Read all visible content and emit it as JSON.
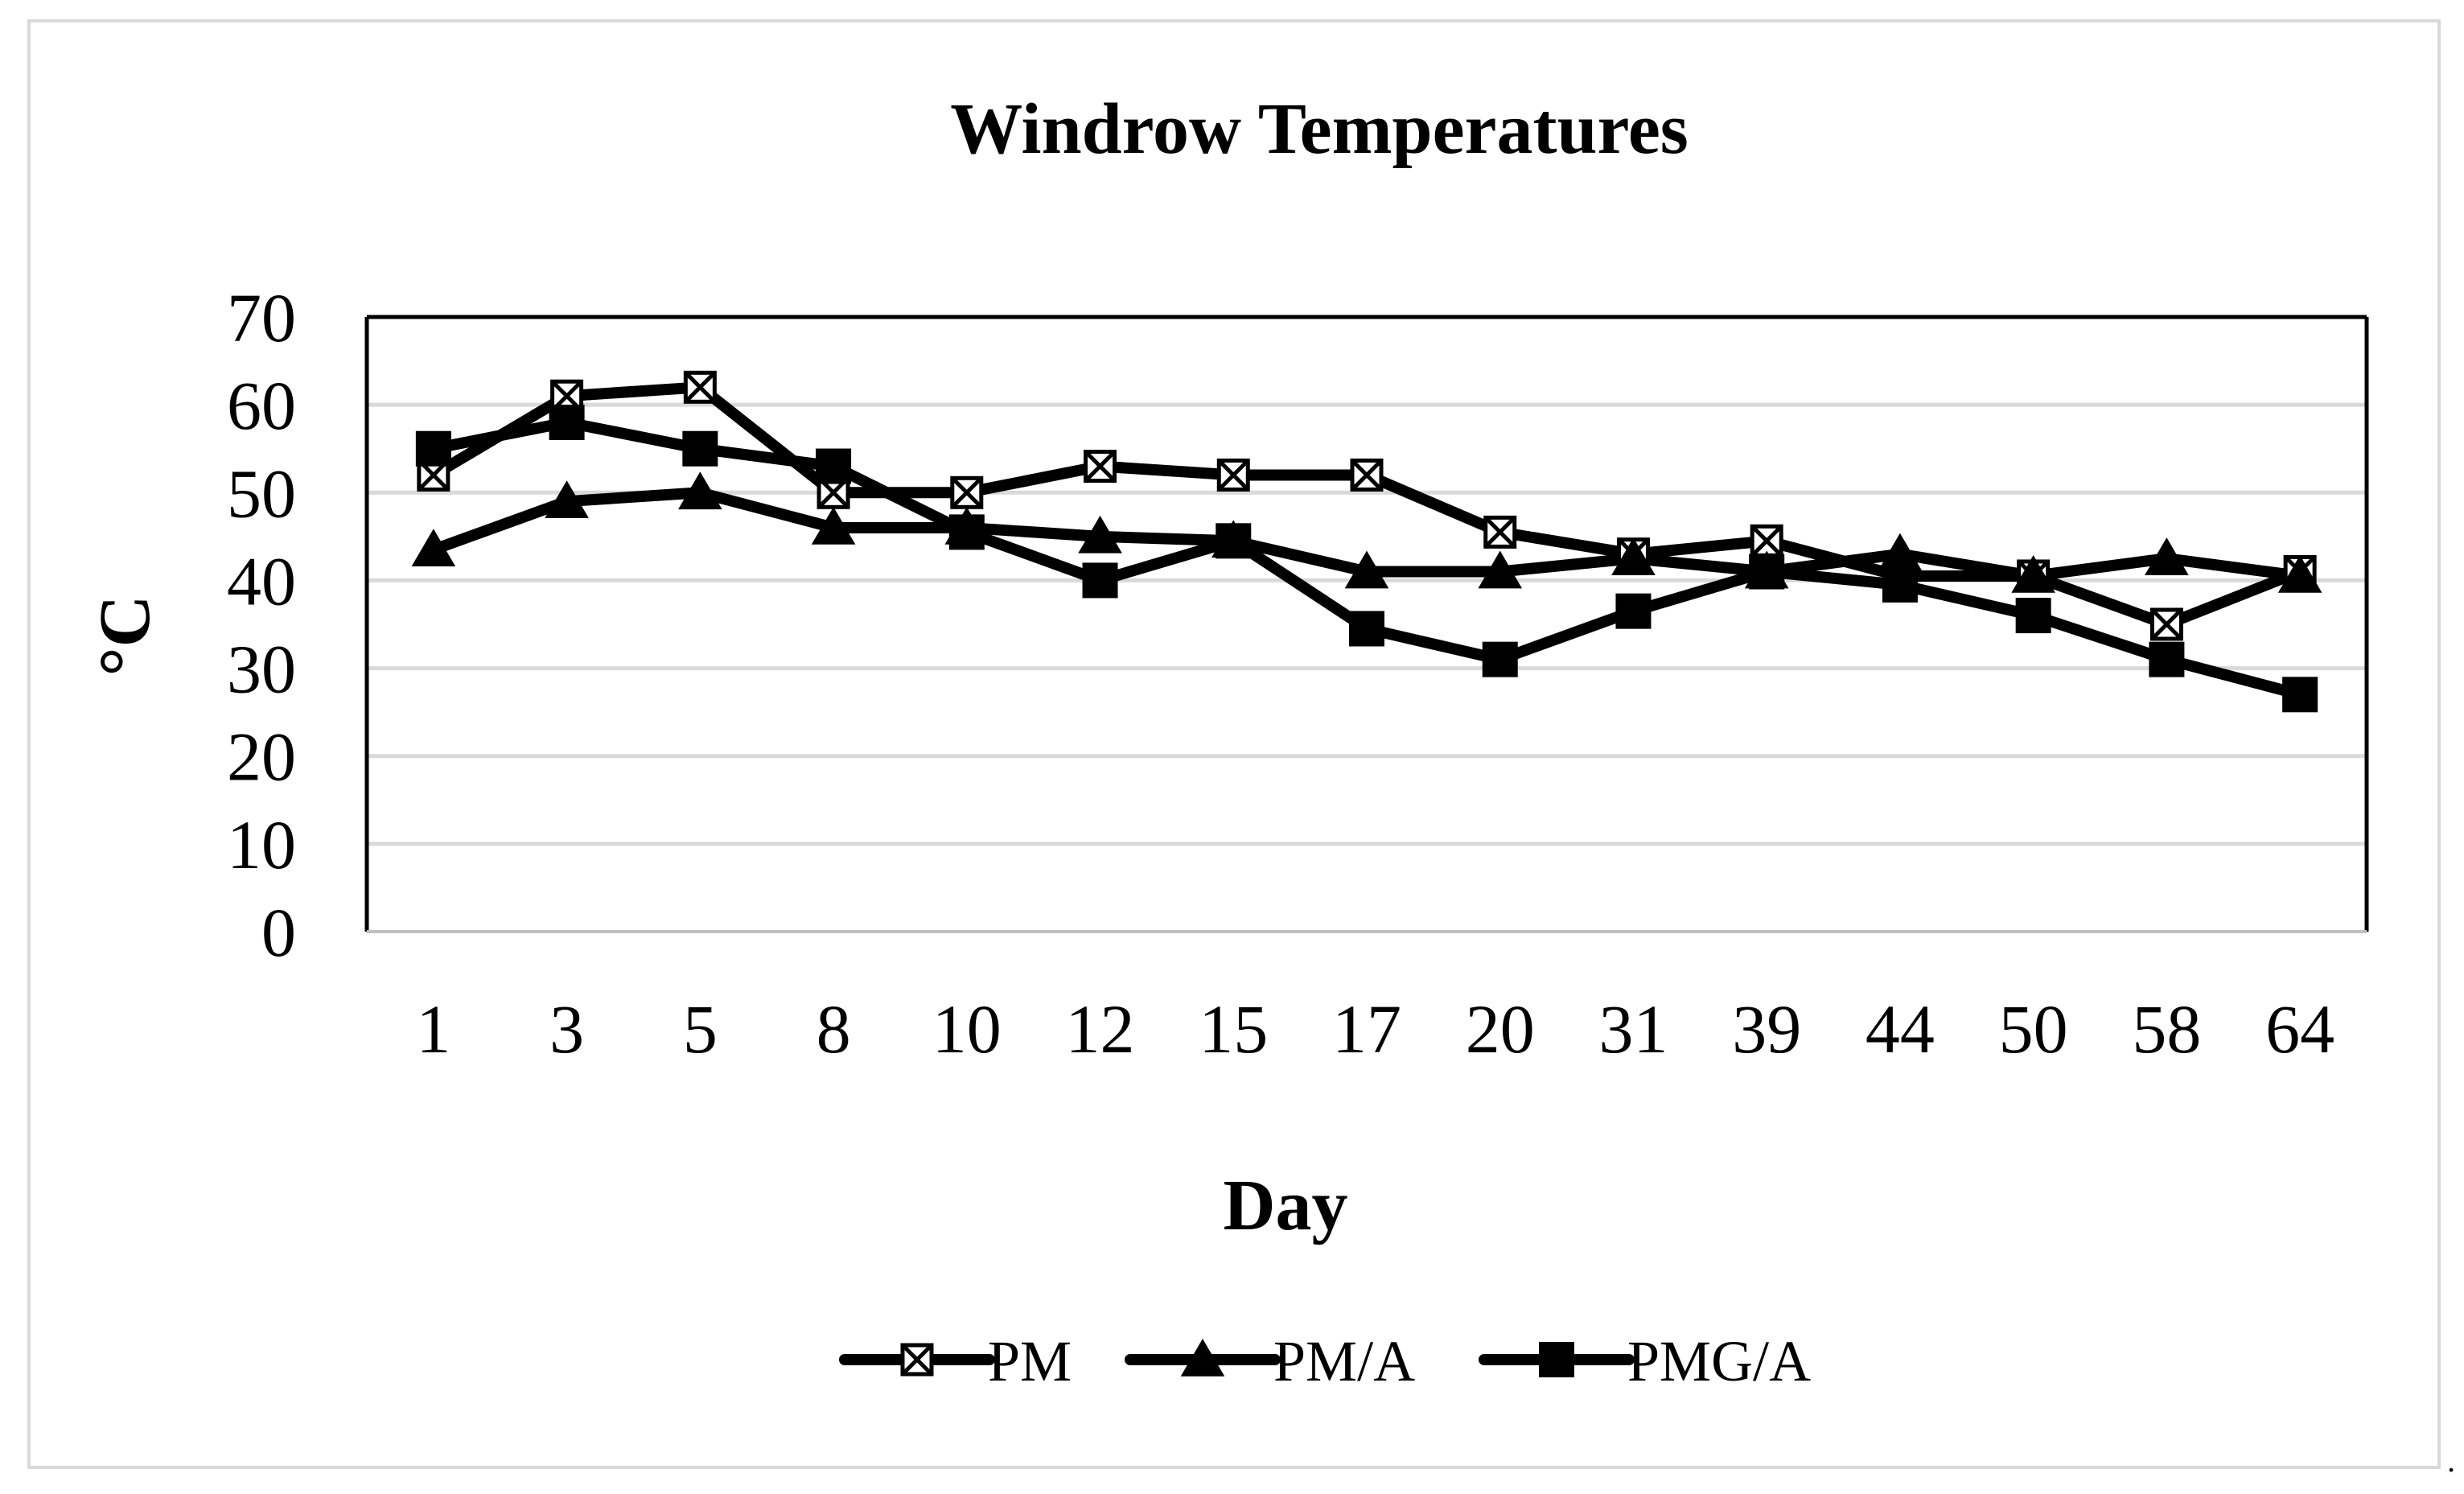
{
  "chart_data": {
    "type": "line",
    "title": "Windrow Temperatures",
    "xlabel": "Day",
    "ylabel": "°C",
    "categories": [
      "1",
      "3",
      "5",
      "8",
      "10",
      "12",
      "15",
      "17",
      "20",
      "31",
      "39",
      "44",
      "50",
      "58",
      "64"
    ],
    "ylim": [
      0,
      70
    ],
    "yticks": [
      0,
      10,
      20,
      30,
      40,
      50,
      60,
      70
    ],
    "grid": true,
    "legend": "bottom",
    "series": [
      {
        "name": "PM",
        "marker": "x-square",
        "values": [
          52,
          61,
          62,
          50,
          50,
          53,
          52,
          52,
          45.5,
          43,
          44.5,
          40.5,
          40.5,
          35,
          41
        ]
      },
      {
        "name": "PM/A",
        "marker": "triangle",
        "values": [
          43.5,
          49,
          50,
          46,
          46,
          45,
          44.5,
          41,
          41,
          42.5,
          41,
          43,
          40.5,
          42.5,
          40.5
        ]
      },
      {
        "name": "PMG/A",
        "marker": "square",
        "values": [
          55,
          58,
          55,
          53,
          45.5,
          40,
          44.5,
          34.5,
          31,
          36.5,
          41,
          39.5,
          36,
          31,
          27
        ]
      }
    ]
  },
  "colors": {
    "line": "#000000",
    "grid": "#d9d9d9"
  }
}
